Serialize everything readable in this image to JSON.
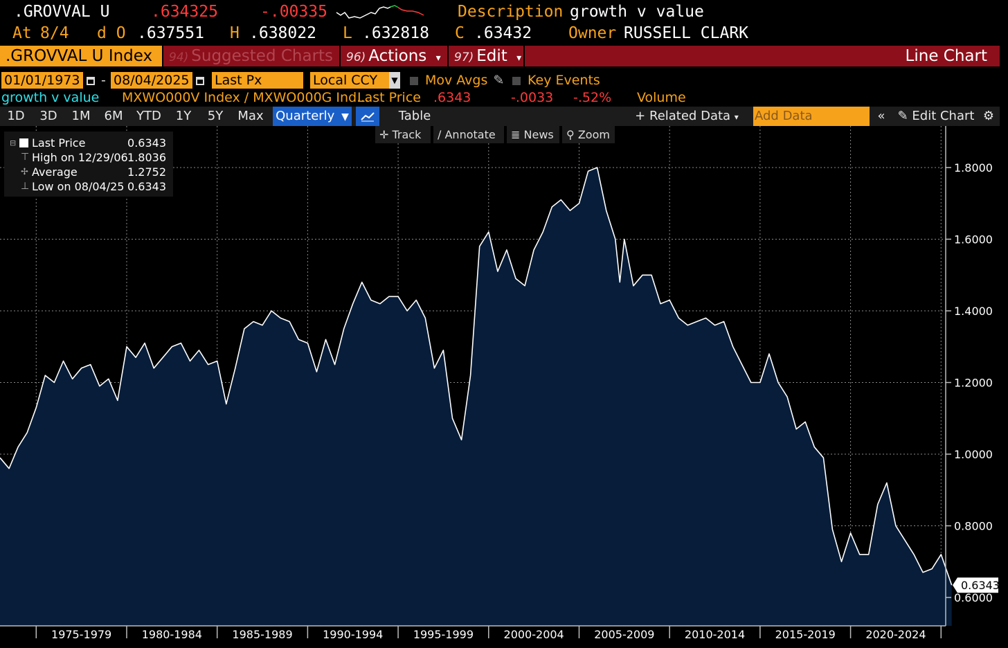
{
  "quote": {
    "ticker": ".GROVVAL U",
    "last": ".634325",
    "change": "-.00335",
    "desc_label": "Description",
    "desc_value": "growth v value",
    "at_label": "At",
    "date": "8/4",
    "open_label": "d O",
    "open": ".637551",
    "high_label": "H",
    "high": ".638022",
    "low_label": "L",
    "low": ".632818",
    "close_label": "C",
    "close": ".63432",
    "owner_label": "Owner",
    "owner": "RUSSELL CLARK"
  },
  "menubar": {
    "security": ".GROVVAL U Index",
    "suggested_num": "94)",
    "suggested": "Suggested Charts",
    "actions_num": "96)",
    "actions": "Actions",
    "edit_num": "97)",
    "edit": "Edit",
    "chart_type": "Line Chart"
  },
  "controls": {
    "start_date": "01/01/1973",
    "end_date": "08/04/2025",
    "field": "Last Px",
    "currency": "Local CCY",
    "mov_avgs": "Mov Avgs",
    "key_events": "Key Events"
  },
  "series_line": {
    "name": "growth v value",
    "formula": "MXWO000V Index / MXWO000G Ind...",
    "last_label": "Last Price",
    "last": ".6343",
    "change": "-.0033",
    "pct": "-.52%",
    "volume_label": "Volume"
  },
  "toolbar": {
    "periods": [
      "1D",
      "3D",
      "1M",
      "6M",
      "YTD",
      "1Y",
      "5Y",
      "Max"
    ],
    "frequency": "Quarterly",
    "table": "Table",
    "related": "Related Data",
    "add_data_placeholder": "Add Data",
    "edit_chart": "Edit Chart"
  },
  "tools": [
    "Track",
    "Annotate",
    "News",
    "Zoom"
  ],
  "legend": {
    "rows": [
      {
        "label": "Last Price",
        "value": "0.6343"
      },
      {
        "label": "High on 12/29/06",
        "value": "1.8036"
      },
      {
        "label": "Average",
        "value": "1.2752"
      },
      {
        "label": "Low on 08/04/25",
        "value": "0.6343"
      }
    ]
  },
  "colors": {
    "accent_orange": "#f7a21b",
    "down_red": "#ff3a3a",
    "menubar_red": "#8c0f1b",
    "area_fill": "#071d3a",
    "line": "#ffffff",
    "active_blue": "#1a5fc8"
  },
  "chart_data": {
    "type": "area",
    "x_period_labels": [
      "1975-1979",
      "1980-1984",
      "1985-1989",
      "1990-1994",
      "1995-1999",
      "2000-2004",
      "2005-2009",
      "2010-2014",
      "2015-2019",
      "2020-2024"
    ],
    "y_ticks": [
      "1.8000",
      "1.6000",
      "1.4000",
      "1.2000",
      "1.0000",
      "0.8000",
      "0.6000"
    ],
    "ylim": [
      0.5,
      1.9
    ],
    "last_value_label": "0.6343",
    "grid": true,
    "x": [
      1973.0,
      1973.5,
      1974.0,
      1974.5,
      1975.0,
      1975.5,
      1976.0,
      1976.5,
      1977.0,
      1977.5,
      1978.0,
      1978.5,
      1979.0,
      1979.5,
      1980.0,
      1980.5,
      1981.0,
      1981.5,
      1982.0,
      1982.5,
      1983.0,
      1983.5,
      1984.0,
      1984.5,
      1985.0,
      1985.5,
      1986.0,
      1986.5,
      1987.0,
      1987.5,
      1988.0,
      1988.5,
      1989.0,
      1989.5,
      1990.0,
      1990.5,
      1991.0,
      1991.5,
      1992.0,
      1992.5,
      1993.0,
      1993.5,
      1994.0,
      1994.5,
      1995.0,
      1995.5,
      1996.0,
      1996.5,
      1997.0,
      1997.5,
      1998.0,
      1998.5,
      1999.0,
      1999.5,
      2000.0,
      2000.5,
      2001.0,
      2001.5,
      2002.0,
      2002.5,
      2003.0,
      2003.5,
      2004.0,
      2004.5,
      2005.0,
      2005.5,
      2006.0,
      2006.5,
      2007.0,
      2007.25,
      2007.5,
      2008.0,
      2008.5,
      2009.0,
      2009.5,
      2010.0,
      2010.5,
      2011.0,
      2011.5,
      2012.0,
      2012.5,
      2013.0,
      2013.5,
      2014.0,
      2014.5,
      2015.0,
      2015.5,
      2016.0,
      2016.5,
      2017.0,
      2017.5,
      2018.0,
      2018.5,
      2019.0,
      2019.5,
      2020.0,
      2020.5,
      2021.0,
      2021.5,
      2022.0,
      2022.5,
      2023.0,
      2023.5,
      2024.0,
      2024.5,
      2025.0,
      2025.59
    ],
    "values": [
      0.99,
      0.96,
      1.02,
      1.06,
      1.13,
      1.22,
      1.2,
      1.26,
      1.21,
      1.24,
      1.25,
      1.19,
      1.21,
      1.15,
      1.3,
      1.27,
      1.31,
      1.24,
      1.27,
      1.3,
      1.31,
      1.26,
      1.29,
      1.25,
      1.26,
      1.14,
      1.24,
      1.35,
      1.37,
      1.36,
      1.4,
      1.38,
      1.37,
      1.32,
      1.31,
      1.23,
      1.32,
      1.25,
      1.35,
      1.42,
      1.48,
      1.43,
      1.42,
      1.44,
      1.44,
      1.4,
      1.43,
      1.38,
      1.24,
      1.29,
      1.1,
      1.04,
      1.22,
      1.58,
      1.62,
      1.51,
      1.57,
      1.49,
      1.47,
      1.57,
      1.62,
      1.69,
      1.71,
      1.68,
      1.7,
      1.79,
      1.8,
      1.68,
      1.6,
      1.48,
      1.6,
      1.47,
      1.5,
      1.5,
      1.42,
      1.43,
      1.38,
      1.36,
      1.37,
      1.38,
      1.36,
      1.37,
      1.3,
      1.25,
      1.2,
      1.2,
      1.28,
      1.2,
      1.16,
      1.07,
      1.09,
      1.02,
      0.99,
      0.79,
      0.7,
      0.78,
      0.72,
      0.72,
      0.86,
      0.92,
      0.8,
      0.76,
      0.72,
      0.67,
      0.68,
      0.72,
      0.6343
    ]
  }
}
